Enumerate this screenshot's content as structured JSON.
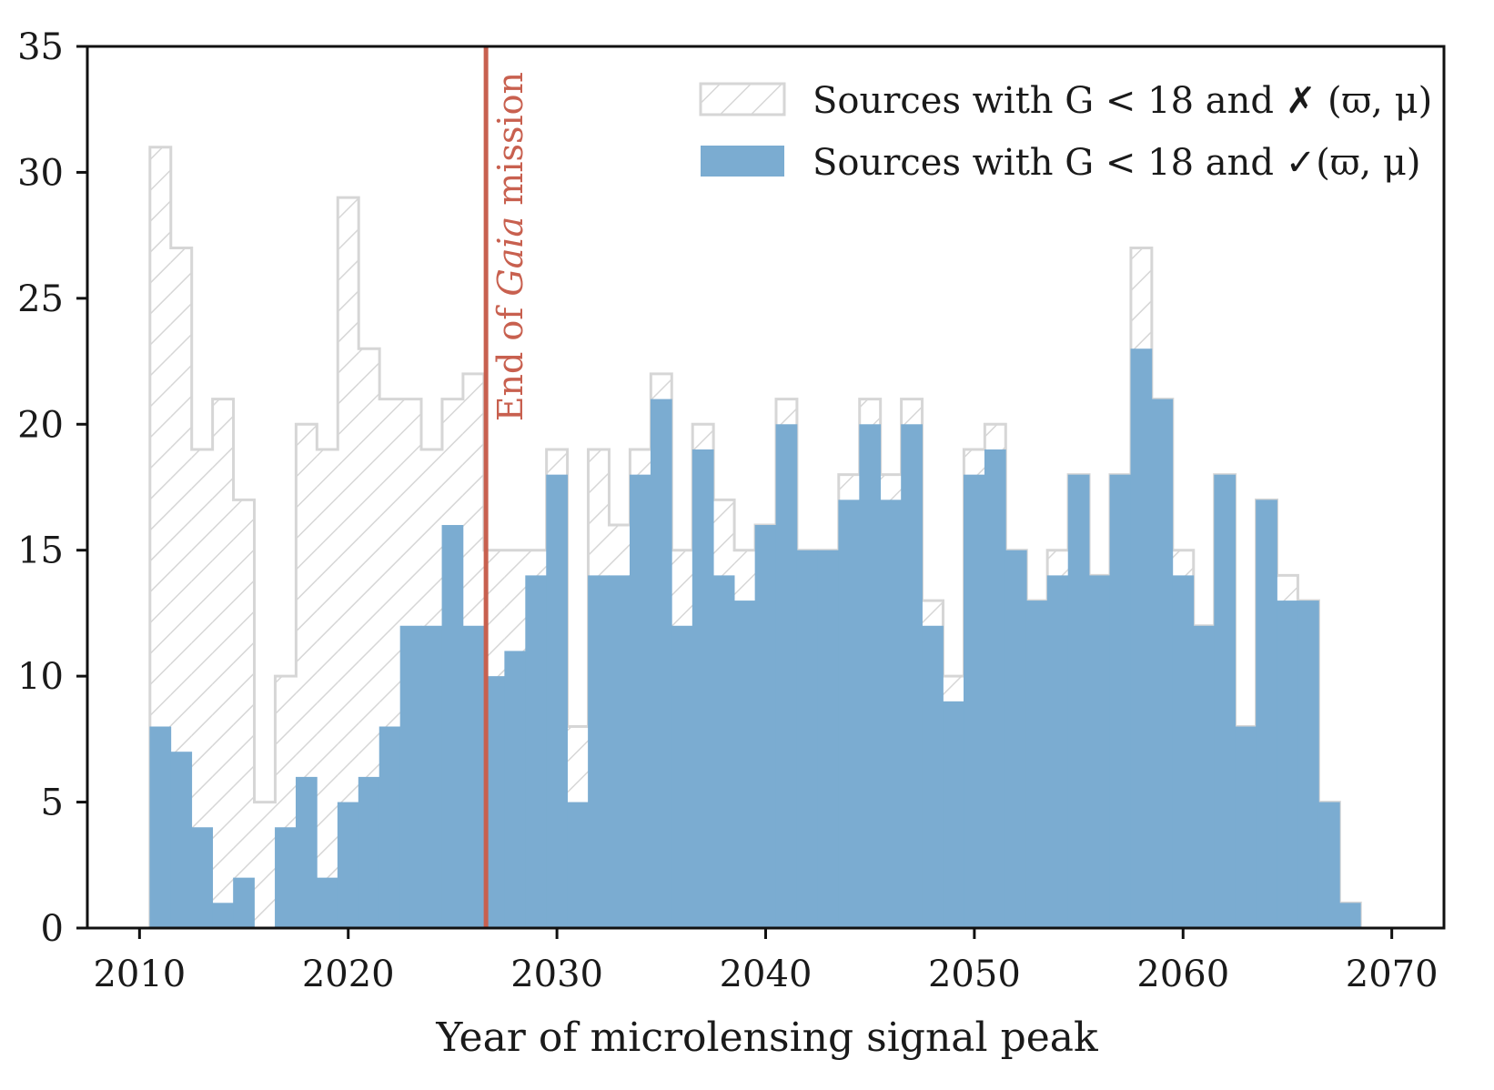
{
  "chart_data": {
    "type": "bar",
    "xlabel": "Year of microlensing signal peak",
    "ylabel": "",
    "xlim": [
      2007.5,
      2072.5
    ],
    "ylim": [
      0,
      35
    ],
    "xticks": [
      2010,
      2020,
      2030,
      2040,
      2050,
      2060,
      2070
    ],
    "yticks": [
      0,
      5,
      10,
      15,
      20,
      25,
      30,
      35
    ],
    "bin_edges_start": 2010.5,
    "bin_width": 1,
    "legend_position": "top-right",
    "series": [
      {
        "name": "Sources with G < 18 and ✗ (ϖ, μ)",
        "style": "hatched-outline",
        "color": "#d6d6d6",
        "values": [
          31,
          27,
          19,
          21,
          17,
          5,
          10,
          20,
          19,
          29,
          23,
          21,
          21,
          19,
          21,
          22,
          15,
          15,
          15,
          19,
          8,
          19,
          16,
          19,
          22,
          15,
          20,
          17,
          15,
          16,
          21,
          15,
          15,
          18,
          21,
          18,
          21,
          13,
          10,
          19,
          20,
          15,
          13,
          15,
          18,
          14,
          18,
          27,
          21,
          15,
          12,
          18,
          8,
          17,
          14,
          13,
          5,
          1
        ]
      },
      {
        "name": "Sources with G < 18 and ✓(ϖ, μ)",
        "style": "filled",
        "color": "#7bacd1",
        "values": [
          8,
          7,
          4,
          1,
          2,
          0,
          4,
          6,
          2,
          5,
          6,
          8,
          12,
          12,
          16,
          12,
          10,
          11,
          14,
          18,
          5,
          14,
          14,
          18,
          21,
          12,
          19,
          14,
          13,
          16,
          20,
          15,
          15,
          17,
          20,
          17,
          20,
          12,
          9,
          18,
          19,
          15,
          13,
          14,
          18,
          14,
          18,
          23,
          21,
          14,
          12,
          18,
          8,
          17,
          13,
          13,
          5,
          1
        ]
      }
    ],
    "annotations": [
      {
        "type": "vline",
        "x": 2026.6,
        "color": "#c8604f",
        "label_prefix": "End of ",
        "label_italic": "Gaia",
        "label_suffix": " mission"
      }
    ]
  }
}
